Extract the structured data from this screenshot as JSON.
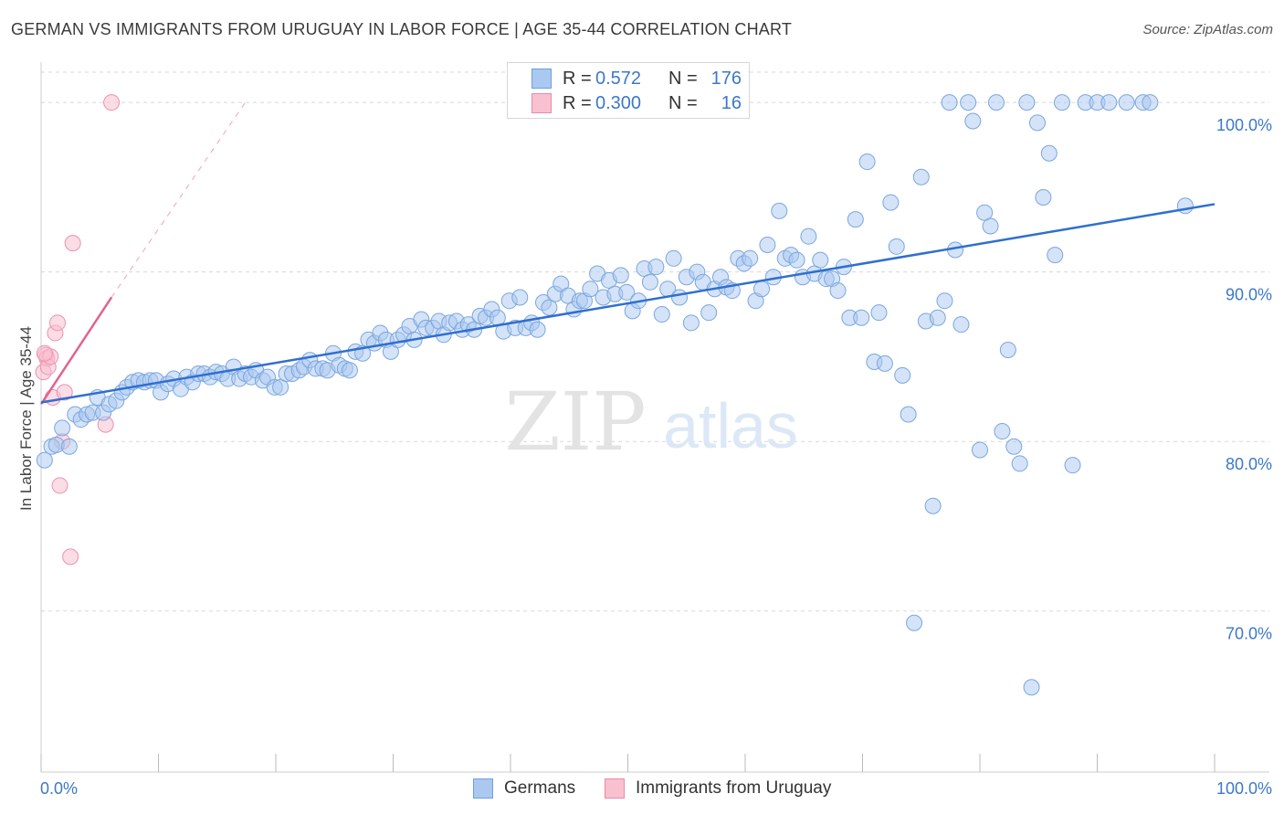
{
  "header": {
    "title": "GERMAN VS IMMIGRANTS FROM URUGUAY IN LABOR FORCE | AGE 35-44 CORRELATION CHART",
    "source": "Source: ZipAtlas.com"
  },
  "watermark": {
    "zip": "ZIP",
    "atlas": "atlas"
  },
  "legend": {
    "rows": [
      {
        "r_label": "R =",
        "r_value": "0.572",
        "n_label": "N =",
        "n_value": "176",
        "color": "#aac8f0",
        "border": "#6e9fe0"
      },
      {
        "r_label": "R =",
        "r_value": "0.300",
        "n_label": "N =",
        "n_value": "16",
        "color": "#f9c0d0",
        "border": "#e88aa8"
      }
    ]
  },
  "bottom_legend": {
    "items": [
      {
        "label": "Germans",
        "color": "#aac8f0",
        "border": "#6e9fe0"
      },
      {
        "label": "Immigrants from Uruguay",
        "color": "#f9c0d0",
        "border": "#e88aa8"
      }
    ]
  },
  "chart_data": {
    "type": "scatter",
    "title": "GERMAN VS IMMIGRANTS FROM URUGUAY IN LABOR FORCE | AGE 35-44 CORRELATION CHART",
    "xlabel": "",
    "ylabel": "In Labor Force | Age 35-44",
    "xlim": [
      0,
      100
    ],
    "ylim": [
      60.5,
      102
    ],
    "x_tick_labels": [
      "0.0%",
      "100.0%"
    ],
    "y_ticks": [
      70,
      80,
      90,
      100
    ],
    "y_tick_labels": [
      "70.0%",
      "80.0%",
      "90.0%",
      "100.0%"
    ],
    "grid": true,
    "legend_position": "top-center",
    "colors": {
      "germans": "#aac8f0",
      "germans_edge": "#7aa6e0",
      "germans_line": "#2f6fd0",
      "uruguay": "#f9c0d0",
      "uruguay_edge": "#eb92ad",
      "uruguay_line": "#e0648e",
      "grid": "#d8d8d8",
      "tick_text": "#3b78c9"
    },
    "series": [
      {
        "name": "Germans",
        "trend": {
          "x": [
            0,
            100
          ],
          "y": [
            82.3,
            94.0
          ]
        },
        "points": [
          [
            0.3,
            78.9
          ],
          [
            0.9,
            79.7
          ],
          [
            1.3,
            79.8
          ],
          [
            1.8,
            80.8
          ],
          [
            2.4,
            79.7
          ],
          [
            2.9,
            81.6
          ],
          [
            3.4,
            81.3
          ],
          [
            3.9,
            81.6
          ],
          [
            4.4,
            81.7
          ],
          [
            4.8,
            82.6
          ],
          [
            5.3,
            81.7
          ],
          [
            5.8,
            82.2
          ],
          [
            6.4,
            82.4
          ],
          [
            6.9,
            82.9
          ],
          [
            7.3,
            83.2
          ],
          [
            7.8,
            83.5
          ],
          [
            8.3,
            83.6
          ],
          [
            8.8,
            83.5
          ],
          [
            9.3,
            83.6
          ],
          [
            9.8,
            83.6
          ],
          [
            10.2,
            82.9
          ],
          [
            10.8,
            83.4
          ],
          [
            11.3,
            83.7
          ],
          [
            11.9,
            83.1
          ],
          [
            12.4,
            83.8
          ],
          [
            12.9,
            83.5
          ],
          [
            13.4,
            84.0
          ],
          [
            13.9,
            84.0
          ],
          [
            14.4,
            83.8
          ],
          [
            14.9,
            84.1
          ],
          [
            15.4,
            84.0
          ],
          [
            15.9,
            83.7
          ],
          [
            16.4,
            84.4
          ],
          [
            16.9,
            83.7
          ],
          [
            17.4,
            84.0
          ],
          [
            17.9,
            83.8
          ],
          [
            18.3,
            84.2
          ],
          [
            18.9,
            83.6
          ],
          [
            19.3,
            83.8
          ],
          [
            19.9,
            83.2
          ],
          [
            20.4,
            83.2
          ],
          [
            20.9,
            84.0
          ],
          [
            21.4,
            84.0
          ],
          [
            22.0,
            84.2
          ],
          [
            22.4,
            84.4
          ],
          [
            22.9,
            84.8
          ],
          [
            23.4,
            84.3
          ],
          [
            24.0,
            84.3
          ],
          [
            24.4,
            84.2
          ],
          [
            24.9,
            85.2
          ],
          [
            25.4,
            84.5
          ],
          [
            25.9,
            84.3
          ],
          [
            26.3,
            84.2
          ],
          [
            26.8,
            85.3
          ],
          [
            27.4,
            85.2
          ],
          [
            27.9,
            86.0
          ],
          [
            28.4,
            85.8
          ],
          [
            28.9,
            86.4
          ],
          [
            29.4,
            86.0
          ],
          [
            29.8,
            85.3
          ],
          [
            30.4,
            86.0
          ],
          [
            30.9,
            86.3
          ],
          [
            31.4,
            86.8
          ],
          [
            31.8,
            86.0
          ],
          [
            32.4,
            87.2
          ],
          [
            32.8,
            86.7
          ],
          [
            33.4,
            86.7
          ],
          [
            33.9,
            87.1
          ],
          [
            34.3,
            86.3
          ],
          [
            34.8,
            87.0
          ],
          [
            35.4,
            87.1
          ],
          [
            35.9,
            86.6
          ],
          [
            36.4,
            86.9
          ],
          [
            36.9,
            86.6
          ],
          [
            37.4,
            87.4
          ],
          [
            37.9,
            87.3
          ],
          [
            38.4,
            87.8
          ],
          [
            38.9,
            87.3
          ],
          [
            39.4,
            86.5
          ],
          [
            39.9,
            88.3
          ],
          [
            40.4,
            86.7
          ],
          [
            40.8,
            88.5
          ],
          [
            41.3,
            86.7
          ],
          [
            41.8,
            87.0
          ],
          [
            42.3,
            86.6
          ],
          [
            42.8,
            88.2
          ],
          [
            43.3,
            87.9
          ],
          [
            43.8,
            88.7
          ],
          [
            44.3,
            89.3
          ],
          [
            44.9,
            88.6
          ],
          [
            45.4,
            87.8
          ],
          [
            45.9,
            88.3
          ],
          [
            46.3,
            88.3
          ],
          [
            46.8,
            89.0
          ],
          [
            47.4,
            89.9
          ],
          [
            47.9,
            88.5
          ],
          [
            48.4,
            89.5
          ],
          [
            48.9,
            88.7
          ],
          [
            49.4,
            89.8
          ],
          [
            49.9,
            88.8
          ],
          [
            50.4,
            87.7
          ],
          [
            50.9,
            88.3
          ],
          [
            51.4,
            90.2
          ],
          [
            51.9,
            89.4
          ],
          [
            52.4,
            90.3
          ],
          [
            52.9,
            87.5
          ],
          [
            53.4,
            89.0
          ],
          [
            53.9,
            90.8
          ],
          [
            54.4,
            88.5
          ],
          [
            55.0,
            89.7
          ],
          [
            55.4,
            87.0
          ],
          [
            55.9,
            90.0
          ],
          [
            56.4,
            89.4
          ],
          [
            56.9,
            87.6
          ],
          [
            57.4,
            89.0
          ],
          [
            57.9,
            89.7
          ],
          [
            58.4,
            89.1
          ],
          [
            58.9,
            88.9
          ],
          [
            59.4,
            90.8
          ],
          [
            59.9,
            90.5
          ],
          [
            60.4,
            90.8
          ],
          [
            60.9,
            88.3
          ],
          [
            61.4,
            89.0
          ],
          [
            61.9,
            91.6
          ],
          [
            62.4,
            89.7
          ],
          [
            62.9,
            93.6
          ],
          [
            63.4,
            90.8
          ],
          [
            63.9,
            91.0
          ],
          [
            64.4,
            90.7
          ],
          [
            64.9,
            89.7
          ],
          [
            65.4,
            92.1
          ],
          [
            65.9,
            89.9
          ],
          [
            66.4,
            90.7
          ],
          [
            66.9,
            89.6
          ],
          [
            67.4,
            89.6
          ],
          [
            67.9,
            88.9
          ],
          [
            68.4,
            90.3
          ],
          [
            68.9,
            87.3
          ],
          [
            69.4,
            93.1
          ],
          [
            69.9,
            87.3
          ],
          [
            70.4,
            96.5
          ],
          [
            71.0,
            84.7
          ],
          [
            71.4,
            87.6
          ],
          [
            71.9,
            84.6
          ],
          [
            72.4,
            94.1
          ],
          [
            72.9,
            91.5
          ],
          [
            73.4,
            83.9
          ],
          [
            73.9,
            81.6
          ],
          [
            74.4,
            69.3
          ],
          [
            75.0,
            95.6
          ],
          [
            75.4,
            87.1
          ],
          [
            76.0,
            76.2
          ],
          [
            76.4,
            87.3
          ],
          [
            77.0,
            88.3
          ],
          [
            77.4,
            100.0
          ],
          [
            77.9,
            91.3
          ],
          [
            78.4,
            86.9
          ],
          [
            79.0,
            100.0
          ],
          [
            79.4,
            98.9
          ],
          [
            80.0,
            79.5
          ],
          [
            80.4,
            93.5
          ],
          [
            80.9,
            92.7
          ],
          [
            81.4,
            100.0
          ],
          [
            81.9,
            80.6
          ],
          [
            82.4,
            85.4
          ],
          [
            82.9,
            79.7
          ],
          [
            83.4,
            78.7
          ],
          [
            84.0,
            100.0
          ],
          [
            84.4,
            65.5
          ],
          [
            84.9,
            98.8
          ],
          [
            85.4,
            94.4
          ],
          [
            85.9,
            97.0
          ],
          [
            86.4,
            91.0
          ],
          [
            87.0,
            100.0
          ],
          [
            87.9,
            78.6
          ],
          [
            89.0,
            100.0
          ],
          [
            90.0,
            100.0
          ],
          [
            91.0,
            100.0
          ],
          [
            92.5,
            100.0
          ],
          [
            93.9,
            100.0
          ],
          [
            94.5,
            100.0
          ],
          [
            97.5,
            93.9
          ]
        ]
      },
      {
        "name": "Immigrants from Uruguay",
        "trend": {
          "x": [
            0,
            6.0
          ],
          "y": [
            82.2,
            88.5
          ],
          "dash_extension": {
            "x": [
              6.0,
              17.4
            ],
            "y": [
              88.5,
              100.0
            ]
          }
        },
        "points": [
          [
            0.2,
            84.1
          ],
          [
            0.4,
            85.1
          ],
          [
            0.5,
            84.9
          ],
          [
            0.6,
            84.4
          ],
          [
            0.8,
            85.0
          ],
          [
            1.0,
            82.6
          ],
          [
            1.2,
            86.4
          ],
          [
            1.4,
            87.0
          ],
          [
            1.6,
            77.4
          ],
          [
            1.8,
            80.0
          ],
          [
            2.0,
            82.9
          ],
          [
            2.5,
            73.2
          ],
          [
            2.7,
            91.7
          ],
          [
            5.5,
            81.0
          ],
          [
            6.0,
            100.0
          ],
          [
            0.3,
            85.2
          ]
        ]
      }
    ]
  }
}
